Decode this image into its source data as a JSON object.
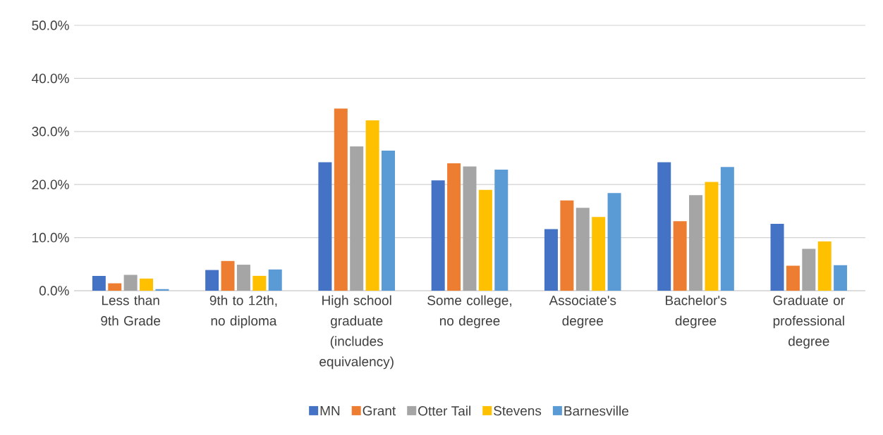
{
  "chart_data": {
    "type": "bar",
    "categories": [
      "Less than 9th Grade",
      "9th to 12th, no diploma",
      "High school graduate (includes equivalency)",
      "Some college, no degree",
      "Associate's degree",
      "Bachelor's degree",
      "Graduate or professional degree"
    ],
    "series": [
      {
        "name": "MN",
        "color": "#4472c4",
        "values": [
          2.8,
          3.9,
          24.2,
          20.8,
          11.6,
          24.2,
          12.6
        ]
      },
      {
        "name": "Grant",
        "color": "#ed7d31",
        "values": [
          1.4,
          5.6,
          34.3,
          24.0,
          17.0,
          13.1,
          4.7
        ]
      },
      {
        "name": "Otter Tail",
        "color": "#a5a5a5",
        "values": [
          3.0,
          4.9,
          27.2,
          23.4,
          15.6,
          18.0,
          7.9
        ]
      },
      {
        "name": "Stevens",
        "color": "#ffc000",
        "values": [
          2.3,
          2.8,
          32.1,
          19.0,
          13.9,
          20.5,
          9.3
        ]
      },
      {
        "name": "Barnesville",
        "color": "#5b9bd5",
        "values": [
          0.3,
          4.0,
          26.4,
          22.8,
          18.4,
          23.3,
          4.8
        ]
      }
    ],
    "ylim": [
      0,
      50
    ],
    "yticks": [
      {
        "value": 0,
        "label": "0.0%"
      },
      {
        "value": 10,
        "label": "10.0%"
      },
      {
        "value": 20,
        "label": "20.0%"
      },
      {
        "value": 30,
        "label": "30.0%"
      },
      {
        "value": 40,
        "label": "40.0%"
      },
      {
        "value": 50,
        "label": "50.0%"
      }
    ],
    "grid": "y",
    "legend": "bottom"
  }
}
